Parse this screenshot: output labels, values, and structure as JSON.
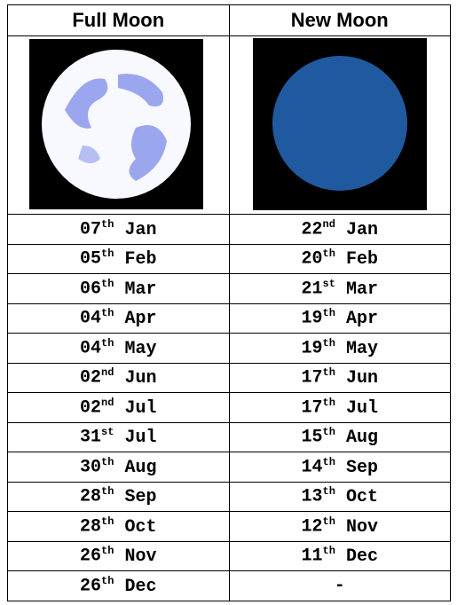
{
  "table": {
    "header": [
      "Full Moon",
      "New Moon"
    ],
    "rows": [
      [
        {
          "day": "07",
          "suffix": "th",
          "month": "Jan"
        },
        {
          "day": "22",
          "suffix": "nd",
          "month": "Jan"
        }
      ],
      [
        {
          "day": "05",
          "suffix": "th",
          "month": "Feb"
        },
        {
          "day": "20",
          "suffix": "th",
          "month": "Feb"
        }
      ],
      [
        {
          "day": "06",
          "suffix": "th",
          "month": "Mar"
        },
        {
          "day": "21",
          "suffix": "st",
          "month": "Mar"
        }
      ],
      [
        {
          "day": "04",
          "suffix": "th",
          "month": "Apr"
        },
        {
          "day": "19",
          "suffix": "th",
          "month": "Apr"
        }
      ],
      [
        {
          "day": "04",
          "suffix": "th",
          "month": "May"
        },
        {
          "day": "19",
          "suffix": "th",
          "month": "May"
        }
      ],
      [
        {
          "day": "02",
          "suffix": "nd",
          "month": "Jun"
        },
        {
          "day": "17",
          "suffix": "th",
          "month": "Jun"
        }
      ],
      [
        {
          "day": "02",
          "suffix": "nd",
          "month": "Jul"
        },
        {
          "day": "17",
          "suffix": "th",
          "month": "Jul"
        }
      ],
      [
        {
          "day": "31",
          "suffix": "st",
          "month": "Jul"
        },
        {
          "day": "15",
          "suffix": "th",
          "month": "Aug"
        }
      ],
      [
        {
          "day": "30",
          "suffix": "th",
          "month": "Aug"
        },
        {
          "day": "14",
          "suffix": "th",
          "month": "Sep"
        }
      ],
      [
        {
          "day": "28",
          "suffix": "th",
          "month": "Sep"
        },
        {
          "day": "13",
          "suffix": "th",
          "month": "Oct"
        }
      ],
      [
        {
          "day": "28",
          "suffix": "th",
          "month": "Oct"
        },
        {
          "day": "12",
          "suffix": "th",
          "month": "Nov"
        }
      ],
      [
        {
          "day": "26",
          "suffix": "th",
          "month": "Nov"
        },
        {
          "day": "11",
          "suffix": "th",
          "month": "Dec"
        }
      ],
      [
        {
          "day": "26",
          "suffix": "th",
          "month": "Dec"
        },
        "-"
      ]
    ]
  }
}
